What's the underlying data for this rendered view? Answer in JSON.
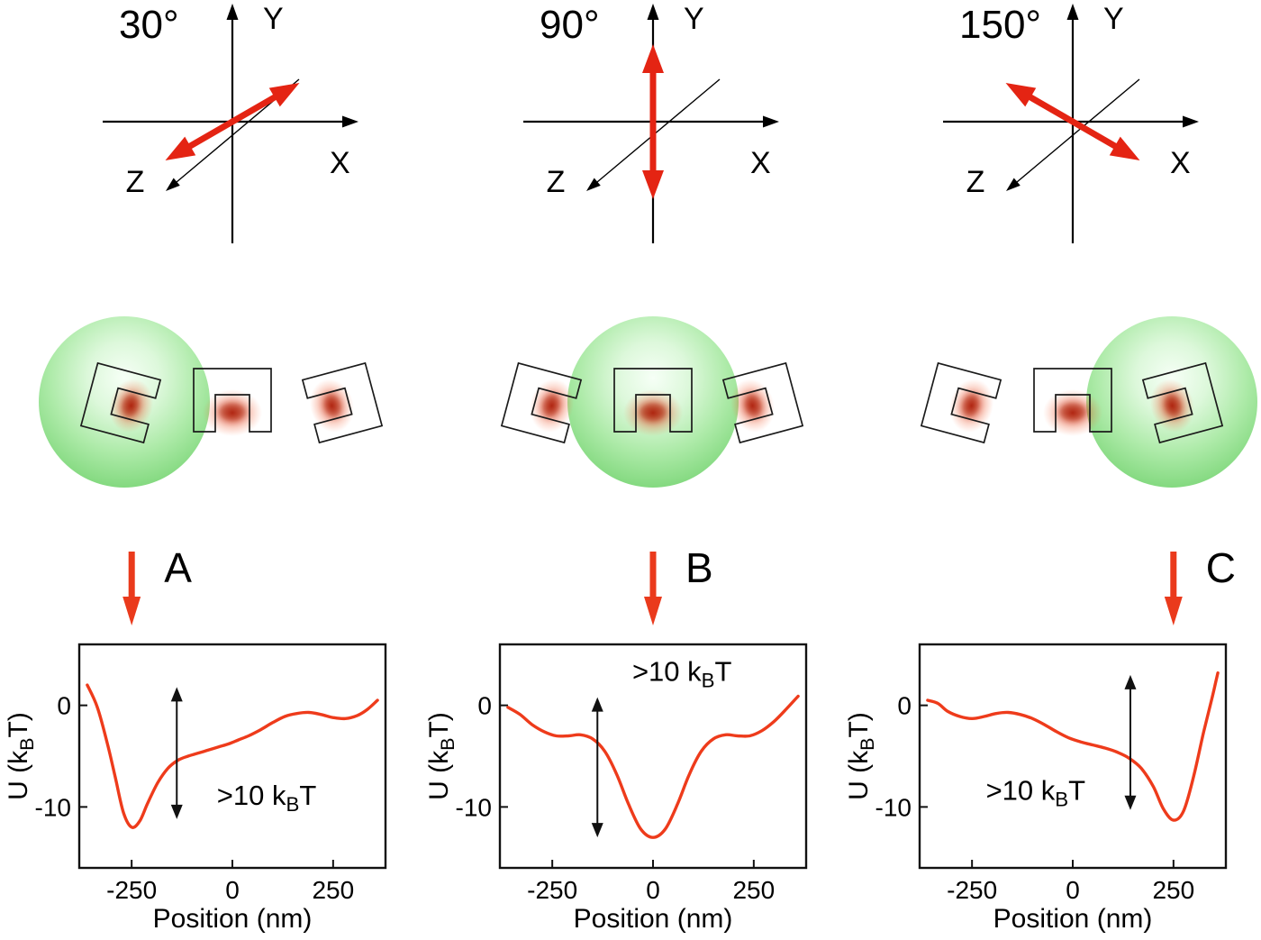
{
  "colors": {
    "polarization_arrow": "#e42413",
    "pointer_arrow": "#ea3a1c",
    "curve": "#ee3b1b",
    "particle_green": "#7ed87a",
    "field_glow": "#c81e00"
  },
  "panels": [
    {
      "id": "A",
      "angle_label": "30°",
      "polarization_angle_deg": 30,
      "axes": {
        "x": "X",
        "y": "Y",
        "z": "Z"
      },
      "trap_site": "left",
      "trap_position_nm": -250,
      "pointer_label": "A"
    },
    {
      "id": "B",
      "angle_label": "90°",
      "polarization_angle_deg": 90,
      "axes": {
        "x": "X",
        "y": "Y",
        "z": "Z"
      },
      "trap_site": "center",
      "trap_position_nm": 0,
      "pointer_label": "B"
    },
    {
      "id": "C",
      "angle_label": "150°",
      "polarization_angle_deg": 150,
      "axes": {
        "x": "X",
        "y": "Y",
        "z": "Z"
      },
      "trap_site": "right",
      "trap_position_nm": 250,
      "pointer_label": "C"
    }
  ],
  "chart_data": [
    {
      "type": "line",
      "panel": "A",
      "title": "",
      "xlabel": "Position (nm)",
      "ylabel": "U (kBT)",
      "ylabel_parts": {
        "pre": "U (k",
        "sub": "B",
        "post": "T)"
      },
      "xlim": [
        -380,
        380
      ],
      "ylim": [
        -16,
        6
      ],
      "xticks": [
        -250,
        0,
        250
      ],
      "yticks": [
        0,
        -10
      ],
      "grid": false,
      "annotation": {
        "text": ">10 kBT",
        "text_parts": {
          "pre": ">10 k",
          "sub": "B",
          "post": "T"
        },
        "text_x": 85,
        "text_y": -9.8,
        "arrow_x": -138,
        "arrow_y_top": 1.8,
        "arrow_y_bottom": -11.2
      },
      "series": [
        {
          "name": "U",
          "x": [
            -360,
            -335,
            -310,
            -290,
            -270,
            -250,
            -230,
            -210,
            -185,
            -160,
            -135,
            -110,
            -85,
            -60,
            -35,
            -10,
            15,
            40,
            70,
            100,
            130,
            160,
            190,
            220,
            250,
            280,
            310,
            335,
            360
          ],
          "y": [
            2.0,
            -0.2,
            -3.8,
            -7.2,
            -10.6,
            -12.0,
            -11.4,
            -9.6,
            -7.6,
            -6.2,
            -5.4,
            -5.0,
            -4.7,
            -4.4,
            -4.1,
            -3.8,
            -3.4,
            -3.0,
            -2.4,
            -1.7,
            -1.1,
            -0.8,
            -0.7,
            -0.9,
            -1.2,
            -1.3,
            -1.0,
            -0.4,
            0.5
          ]
        }
      ]
    },
    {
      "type": "line",
      "panel": "B",
      "title": "",
      "xlabel": "Position (nm)",
      "ylabel": "U (kBT)",
      "ylabel_parts": {
        "pre": "U (k",
        "sub": "B",
        "post": "T)"
      },
      "xlim": [
        -380,
        380
      ],
      "ylim": [
        -16,
        6
      ],
      "xticks": [
        -250,
        0,
        250
      ],
      "yticks": [
        0,
        -10
      ],
      "grid": false,
      "annotation": {
        "text": ">10 kBT",
        "text_parts": {
          "pre": ">10 k",
          "sub": "B",
          "post": "T"
        },
        "text_x": 72,
        "text_y": 2.4,
        "arrow_x": -138,
        "arrow_y_top": 0.8,
        "arrow_y_bottom": -13.0
      },
      "series": [
        {
          "name": "U",
          "x": [
            -360,
            -330,
            -300,
            -270,
            -240,
            -210,
            -180,
            -150,
            -120,
            -90,
            -60,
            -30,
            0,
            30,
            60,
            90,
            120,
            150,
            180,
            210,
            240,
            270,
            300,
            330,
            360
          ],
          "y": [
            -0.2,
            -0.9,
            -1.9,
            -2.6,
            -3.0,
            -3.0,
            -2.9,
            -3.3,
            -4.5,
            -6.8,
            -9.8,
            -12.2,
            -13.0,
            -12.2,
            -9.8,
            -6.8,
            -4.5,
            -3.3,
            -2.9,
            -3.0,
            -3.0,
            -2.5,
            -1.6,
            -0.4,
            0.9
          ]
        }
      ]
    },
    {
      "type": "line",
      "panel": "C",
      "title": "",
      "xlabel": "Position (nm)",
      "ylabel": "U (kBT)",
      "ylabel_parts": {
        "pre": "U (k",
        "sub": "B",
        "post": "T)"
      },
      "xlim": [
        -380,
        380
      ],
      "ylim": [
        -16,
        6
      ],
      "xticks": [
        -250,
        0,
        250
      ],
      "yticks": [
        0,
        -10
      ],
      "grid": false,
      "annotation": {
        "text": ">10 kBT",
        "text_parts": {
          "pre": ">10 k",
          "sub": "B",
          "post": "T"
        },
        "text_x": -92,
        "text_y": -9.3,
        "arrow_x": 143,
        "arrow_y_top": 3.0,
        "arrow_y_bottom": -10.3
      },
      "series": [
        {
          "name": "U",
          "x": [
            -360,
            -335,
            -310,
            -280,
            -250,
            -220,
            -190,
            -160,
            -130,
            -100,
            -70,
            -40,
            -10,
            20,
            50,
            80,
            110,
            140,
            170,
            200,
            225,
            250,
            275,
            300,
            325,
            345,
            360
          ],
          "y": [
            0.5,
            0.2,
            -0.6,
            -1.1,
            -1.3,
            -1.1,
            -0.8,
            -0.7,
            -0.9,
            -1.3,
            -1.9,
            -2.6,
            -3.2,
            -3.6,
            -3.9,
            -4.2,
            -4.6,
            -5.2,
            -6.2,
            -8.0,
            -10.2,
            -11.3,
            -10.4,
            -7.0,
            -2.6,
            0.6,
            3.2
          ]
        }
      ]
    }
  ]
}
